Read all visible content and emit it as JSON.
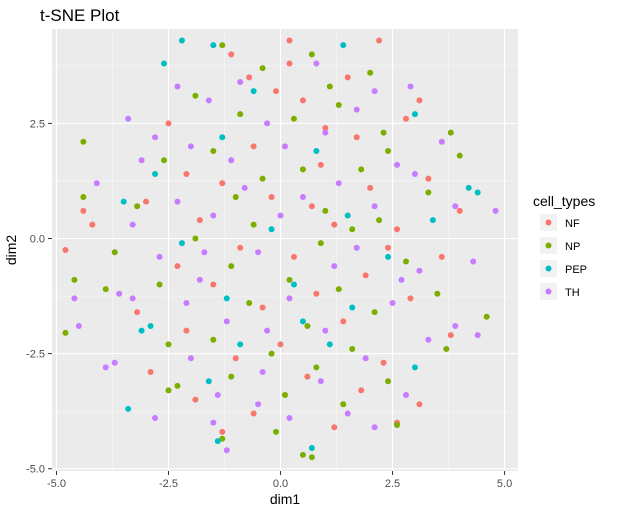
{
  "chart_data": {
    "type": "scatter",
    "title": "t-SNE Plot",
    "xlabel": "dim1",
    "ylabel": "dim2",
    "xlim": [
      -5.1,
      5.3
    ],
    "ylim": [
      -5.05,
      4.55
    ],
    "xticks": [
      -5.0,
      -2.5,
      0.0,
      2.5,
      5.0
    ],
    "xtick_labels": [
      "-5.0",
      "-2.5",
      "0.0",
      "2.5",
      "5.0"
    ],
    "yticks": [
      -5.0,
      -2.5,
      0.0,
      2.5
    ],
    "ytick_labels": [
      "-5.0",
      "-2.5",
      "0.0",
      "2.5"
    ],
    "grid": true,
    "legend": {
      "title": "cell_types",
      "position": "right"
    },
    "series": [
      {
        "name": "NF",
        "color": "#F8766D",
        "points": [
          [
            0.2,
            4.3
          ],
          [
            -1.1,
            4.0
          ],
          [
            2.2,
            4.3
          ],
          [
            1.5,
            3.5
          ],
          [
            -0.1,
            3.2
          ],
          [
            0.5,
            3.0
          ],
          [
            2.8,
            2.6
          ],
          [
            -2.5,
            2.5
          ],
          [
            1.0,
            2.4
          ],
          [
            3.1,
            3.0
          ],
          [
            1.7,
            2.2
          ],
          [
            -0.6,
            2.0
          ],
          [
            0.9,
            1.6
          ],
          [
            -2.1,
            1.4
          ],
          [
            3.3,
            1.3
          ],
          [
            -1.3,
            1.2
          ],
          [
            2.0,
            1.1
          ],
          [
            -0.2,
            0.9
          ],
          [
            0.7,
            0.7
          ],
          [
            -3.0,
            0.8
          ],
          [
            -4.4,
            0.6
          ],
          [
            4.0,
            0.6
          ],
          [
            -1.8,
            0.4
          ],
          [
            1.2,
            0.3
          ],
          [
            -4.2,
            0.3
          ],
          [
            2.6,
            0.2
          ],
          [
            -0.9,
            -0.2
          ],
          [
            0.3,
            -0.4
          ],
          [
            -4.8,
            -0.25
          ],
          [
            3.6,
            -0.4
          ],
          [
            -2.3,
            -0.6
          ],
          [
            1.9,
            -0.8
          ],
          [
            -1.5,
            -1.0
          ],
          [
            0.8,
            -1.2
          ],
          [
            2.9,
            -1.3
          ],
          [
            -0.4,
            -1.5
          ],
          [
            -3.2,
            -1.6
          ],
          [
            1.4,
            -1.8
          ],
          [
            -2.1,
            -2.0
          ],
          [
            3.8,
            -2.1
          ],
          [
            0.0,
            -2.3
          ],
          [
            -1.0,
            -2.6
          ],
          [
            2.3,
            -2.7
          ],
          [
            -2.9,
            -2.9
          ],
          [
            0.6,
            -3.0
          ],
          [
            1.8,
            -3.3
          ],
          [
            -1.9,
            -3.5
          ],
          [
            3.1,
            -3.6
          ],
          [
            -0.6,
            -3.8
          ],
          [
            1.2,
            -4.1
          ],
          [
            2.6,
            -4.0
          ],
          [
            -1.3,
            -4.2
          ],
          [
            0.2,
            3.8
          ],
          [
            -0.7,
            3.5
          ],
          [
            2.4,
            -0.2
          ]
        ]
      },
      {
        "name": "NP",
        "color": "#7CAE00",
        "points": [
          [
            -1.3,
            4.2
          ],
          [
            0.7,
            4.0
          ],
          [
            -0.4,
            3.7
          ],
          [
            2.0,
            3.6
          ],
          [
            -1.9,
            3.1
          ],
          [
            1.3,
            2.9
          ],
          [
            -0.9,
            2.7
          ],
          [
            0.3,
            2.6
          ],
          [
            3.8,
            2.3
          ],
          [
            -4.4,
            2.1
          ],
          [
            -1.5,
            1.9
          ],
          [
            2.4,
            1.9
          ],
          [
            4.0,
            1.8
          ],
          [
            -2.6,
            1.7
          ],
          [
            0.5,
            1.5
          ],
          [
            1.8,
            1.5
          ],
          [
            -0.4,
            1.3
          ],
          [
            3.3,
            1.0
          ],
          [
            -1.0,
            0.9
          ],
          [
            -3.2,
            0.7
          ],
          [
            1.0,
            0.6
          ],
          [
            -4.4,
            0.9
          ],
          [
            2.2,
            0.4
          ],
          [
            -0.6,
            0.3
          ],
          [
            1.6,
            0.2
          ],
          [
            -1.9,
            0.0
          ],
          [
            0.9,
            -0.1
          ],
          [
            -3.7,
            -0.3
          ],
          [
            -4.6,
            -0.9
          ],
          [
            -4.8,
            -2.05
          ],
          [
            2.8,
            -0.5
          ],
          [
            -1.1,
            -0.6
          ],
          [
            0.2,
            -0.9
          ],
          [
            -2.7,
            -1.0
          ],
          [
            1.3,
            -1.1
          ],
          [
            3.5,
            -1.2
          ],
          [
            -0.7,
            -1.4
          ],
          [
            -3.9,
            -1.1
          ],
          [
            2.1,
            -1.6
          ],
          [
            0.6,
            -1.9
          ],
          [
            4.6,
            -1.7
          ],
          [
            -1.5,
            -2.2
          ],
          [
            -0.2,
            -2.5
          ],
          [
            1.6,
            -2.4
          ],
          [
            -2.5,
            -2.3
          ],
          [
            3.7,
            -2.4
          ],
          [
            0.8,
            -2.8
          ],
          [
            -1.1,
            -3.0
          ],
          [
            2.4,
            -3.1
          ],
          [
            -2.3,
            -3.2
          ],
          [
            0.1,
            -3.4
          ],
          [
            1.4,
            -3.6
          ],
          [
            -2.5,
            -3.3
          ],
          [
            2.6,
            -4.05
          ],
          [
            0.5,
            -4.7
          ],
          [
            0.7,
            -4.75
          ],
          [
            -0.1,
            -4.2
          ],
          [
            -1.3,
            -4.35
          ],
          [
            1.1,
            3.3
          ],
          [
            2.3,
            2.3
          ]
        ]
      },
      {
        "name": "PEP",
        "color": "#00BFC4",
        "points": [
          [
            -2.2,
            4.3
          ],
          [
            -1.5,
            4.2
          ],
          [
            1.4,
            4.2
          ],
          [
            -2.6,
            3.8
          ],
          [
            -0.6,
            3.2
          ],
          [
            3.0,
            2.7
          ],
          [
            -1.3,
            2.2
          ],
          [
            0.8,
            1.9
          ],
          [
            -2.8,
            1.4
          ],
          [
            4.2,
            1.1
          ],
          [
            4.4,
            1.0
          ],
          [
            -3.5,
            0.8
          ],
          [
            1.5,
            0.5
          ],
          [
            -0.2,
            0.2
          ],
          [
            2.4,
            -0.4
          ],
          [
            0.3,
            -1.0
          ],
          [
            -2.9,
            -1.9
          ],
          [
            -3.1,
            -2.0
          ],
          [
            0.5,
            -1.8
          ],
          [
            1.6,
            -1.5
          ],
          [
            -0.9,
            -2.3
          ],
          [
            3.0,
            -2.8
          ],
          [
            -3.4,
            -3.7
          ],
          [
            -1.6,
            -3.1
          ],
          [
            -1.4,
            -4.4
          ],
          [
            0.7,
            -4.55
          ],
          [
            -2.2,
            -0.1
          ],
          [
            3.4,
            0.4
          ],
          [
            -1.2,
            -1.3
          ],
          [
            1.1,
            -2.3
          ]
        ]
      },
      {
        "name": "TH",
        "color": "#C77CFF",
        "points": [
          [
            -2.3,
            3.3
          ],
          [
            0.8,
            3.8
          ],
          [
            -1.6,
            3.0
          ],
          [
            2.9,
            3.3
          ],
          [
            -3.4,
            2.6
          ],
          [
            1.7,
            2.8
          ],
          [
            -0.3,
            2.5
          ],
          [
            3.6,
            2.1
          ],
          [
            -2.8,
            2.2
          ],
          [
            0.1,
            2.0
          ],
          [
            -1.1,
            1.7
          ],
          [
            2.6,
            1.6
          ],
          [
            -4.1,
            1.2
          ],
          [
            1.3,
            1.2
          ],
          [
            -0.8,
            1.1
          ],
          [
            3.9,
            0.7
          ],
          [
            -2.3,
            0.8
          ],
          [
            0.5,
            0.9
          ],
          [
            -1.5,
            0.5
          ],
          [
            2.1,
            0.7
          ],
          [
            -3.3,
            0.3
          ],
          [
            4.8,
            0.6
          ],
          [
            -0.5,
            -0.3
          ],
          [
            1.7,
            -0.2
          ],
          [
            -2.7,
            -0.4
          ],
          [
            3.1,
            -0.7
          ],
          [
            -1.8,
            -0.9
          ],
          [
            0.2,
            -1.3
          ],
          [
            -4.5,
            -1.9
          ],
          [
            4.4,
            -2.1
          ],
          [
            -3.6,
            -1.2
          ],
          [
            2.5,
            -1.4
          ],
          [
            -1.2,
            -1.8
          ],
          [
            1.0,
            -2.0
          ],
          [
            -2.0,
            -2.6
          ],
          [
            3.3,
            -2.2
          ],
          [
            -0.4,
            -2.9
          ],
          [
            1.9,
            -2.6
          ],
          [
            -3.7,
            -2.7
          ],
          [
            -3.9,
            -2.8
          ],
          [
            0.9,
            -3.1
          ],
          [
            -1.4,
            -3.4
          ],
          [
            2.8,
            -3.4
          ],
          [
            -2.8,
            -3.9
          ],
          [
            0.2,
            -3.9
          ],
          [
            1.5,
            -3.8
          ],
          [
            -1.5,
            -4.0
          ],
          [
            -1.2,
            -4.6
          ],
          [
            2.1,
            -4.1
          ],
          [
            -0.5,
            -3.6
          ],
          [
            -3.3,
            -1.3
          ],
          [
            3.9,
            -1.9
          ],
          [
            -4.6,
            -1.3
          ],
          [
            4.3,
            -0.5
          ],
          [
            -2.0,
            2.0
          ],
          [
            1.0,
            2.3
          ],
          [
            -0.9,
            3.4
          ],
          [
            2.1,
            3.2
          ],
          [
            0.0,
            0.5
          ],
          [
            -0.3,
            -2.0
          ],
          [
            -2.1,
            -1.4
          ],
          [
            2.7,
            -0.9
          ],
          [
            -3.1,
            1.7
          ],
          [
            3.0,
            1.4
          ],
          [
            -1.7,
            -0.3
          ],
          [
            1.2,
            -0.6
          ]
        ]
      }
    ]
  }
}
